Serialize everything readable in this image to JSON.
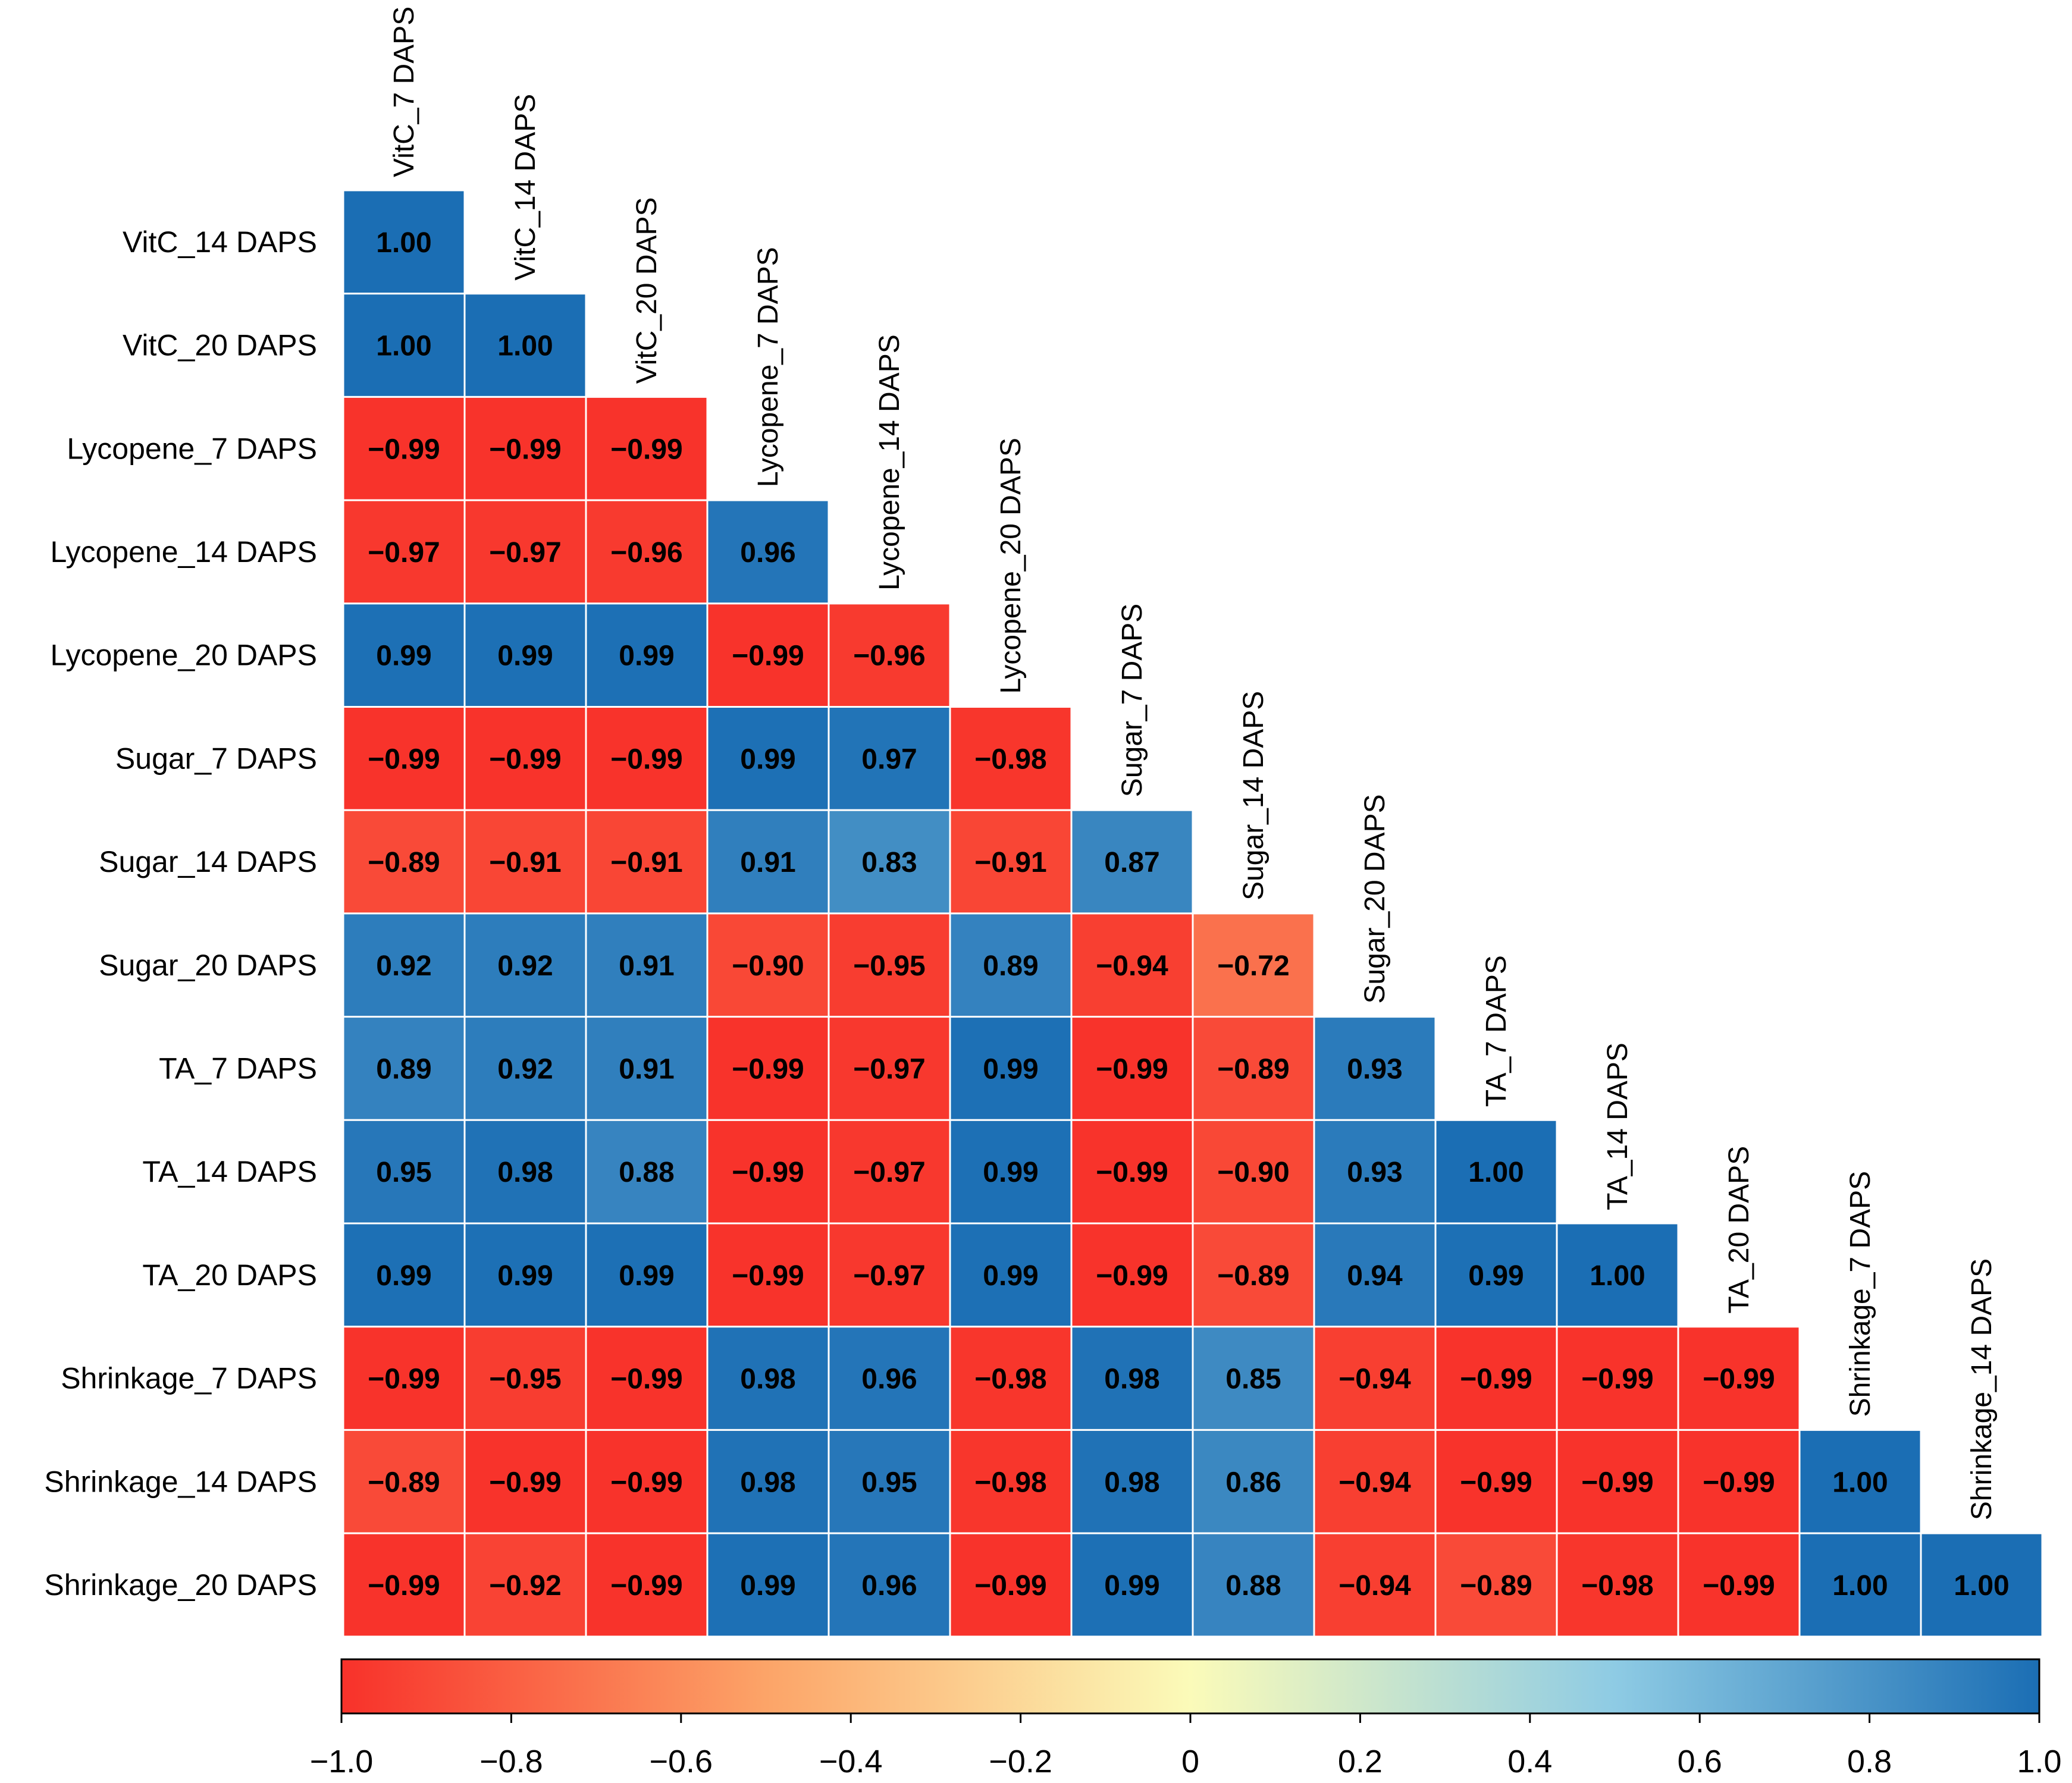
{
  "chart_data": {
    "type": "heatmap",
    "title": "",
    "layout": "lower-triangle correlation matrix",
    "row_labels": [
      "VitC_14 DAPS",
      "VitC_20 DAPS",
      "Lycopene_7 DAPS",
      "Lycopene_14 DAPS",
      "Lycopene_20 DAPS",
      "Sugar_7 DAPS",
      "Sugar_14 DAPS",
      "Sugar_20 DAPS",
      "TA_7 DAPS",
      "TA_14 DAPS",
      "TA_20 DAPS",
      "Shrinkage_7 DAPS",
      "Shrinkage_14 DAPS",
      "Shrinkage_20 DAPS"
    ],
    "column_labels": [
      "VitC_7 DAPS",
      "VitC_14 DAPS",
      "VitC_20 DAPS",
      "Lycopene_7 DAPS",
      "Lycopene_14 DAPS",
      "Lycopene_20 DAPS",
      "Sugar_7 DAPS",
      "Sugar_14 DAPS",
      "Sugar_20 DAPS",
      "TA_7 DAPS",
      "TA_14 DAPS",
      "TA_20 DAPS",
      "Shrinkage_7 DAPS",
      "Shrinkage_14 DAPS"
    ],
    "values": [
      [
        1.0
      ],
      [
        1.0,
        1.0
      ],
      [
        -0.99,
        -0.99,
        -0.99
      ],
      [
        -0.97,
        -0.97,
        -0.96,
        0.96
      ],
      [
        0.99,
        0.99,
        0.99,
        -0.99,
        -0.96
      ],
      [
        -0.99,
        -0.99,
        -0.99,
        0.99,
        0.97,
        -0.98
      ],
      [
        -0.89,
        -0.91,
        -0.91,
        0.91,
        0.83,
        -0.91,
        0.87
      ],
      [
        0.92,
        0.92,
        0.91,
        -0.9,
        -0.95,
        0.89,
        -0.94,
        -0.72
      ],
      [
        0.89,
        0.92,
        0.91,
        -0.99,
        -0.97,
        0.99,
        -0.99,
        -0.89,
        0.93
      ],
      [
        0.95,
        0.98,
        0.88,
        -0.99,
        -0.97,
        0.99,
        -0.99,
        -0.9,
        0.93,
        1.0
      ],
      [
        0.99,
        0.99,
        0.99,
        -0.99,
        -0.97,
        0.99,
        -0.99,
        -0.89,
        0.94,
        0.99,
        1.0
      ],
      [
        -0.99,
        -0.95,
        -0.99,
        0.98,
        0.96,
        -0.98,
        0.98,
        0.85,
        -0.94,
        -0.99,
        -0.99,
        -0.99
      ],
      [
        -0.89,
        -0.99,
        -0.99,
        0.98,
        0.95,
        -0.98,
        0.98,
        0.86,
        -0.94,
        -0.99,
        -0.99,
        -0.99,
        1.0
      ],
      [
        -0.99,
        -0.92,
        -0.99,
        0.99,
        0.96,
        -0.99,
        0.99,
        0.88,
        -0.94,
        -0.89,
        -0.98,
        -0.99,
        1.0,
        1.0
      ]
    ],
    "value_labels": [
      [
        "1.00"
      ],
      [
        "1.00",
        "1.00"
      ],
      [
        "−0.99",
        "−0.99",
        "−0.99"
      ],
      [
        "−0.97",
        "−0.97",
        "−0.96",
        "0.96"
      ],
      [
        "0.99",
        "0.99",
        "0.99",
        "−0.99",
        "−0.96"
      ],
      [
        "−0.99",
        "−0.99",
        "−0.99",
        "0.99",
        "0.97",
        "−0.98"
      ],
      [
        "−0.89",
        "−0.91",
        "−0.91",
        "0.91",
        "0.83",
        "−0.91",
        "0.87"
      ],
      [
        "0.92",
        "0.92",
        "0.91",
        "−0.90",
        "−0.95",
        "0.89",
        "−0.94",
        "−0.72"
      ],
      [
        "0.89",
        "0.92",
        "0.91",
        "−0.99",
        "−0.97",
        "0.99",
        "−0.99",
        "−0.89",
        "0.93"
      ],
      [
        "0.95",
        "0.98",
        "0.88",
        "−0.99",
        "−0.97",
        "0.99",
        "−0.99",
        "−0.90",
        "0.93",
        "1.00"
      ],
      [
        "0.99",
        "0.99",
        "0.99",
        "−0.99",
        "−0.97",
        "0.99",
        "−0.99",
        "−0.89",
        "0.94",
        "0.99",
        "1.00"
      ],
      [
        "−0.99",
        "−0.95",
        "−0.99",
        "0.98",
        "0.96",
        "−0.98",
        "0.98",
        "0.85",
        "−0.94",
        "−0.99",
        "−0.99",
        "−0.99"
      ],
      [
        "−0.89",
        "−0.99",
        "−0.99",
        "0.98",
        "0.95",
        "−0.98",
        "0.98",
        "0.86",
        "−0.94",
        "−0.99",
        "−0.99",
        "−0.99",
        "1.00"
      ],
      [
        "−0.99",
        "−0.92",
        "−0.99",
        "0.99",
        "0.96",
        "−0.99",
        "0.99",
        "0.88",
        "−0.94",
        "−0.89",
        "−0.98",
        "−0.99",
        "1.00",
        "1.00"
      ]
    ],
    "colorbar": {
      "range": [
        -1.0,
        1.0
      ],
      "ticks": [
        -1.0,
        -0.8,
        -0.6,
        -0.4,
        -0.2,
        0,
        0.2,
        0.4,
        0.6,
        0.8,
        1.0
      ],
      "tick_labels": [
        "−1.0",
        "−0.8",
        "−0.6",
        "−0.4",
        "−0.2",
        "0",
        "0.2",
        "0.4",
        "0.6",
        "0.8",
        "1.0"
      ],
      "placement": "bottom",
      "color_stops": [
        {
          "value": -1.0,
          "color": "#f8312a"
        },
        {
          "value": -0.5,
          "color": "#fca468"
        },
        {
          "value": 0.0,
          "color": "#fbfbb9"
        },
        {
          "value": 0.5,
          "color": "#8ecbe4"
        },
        {
          "value": 1.0,
          "color": "#1b6eb4"
        }
      ]
    },
    "grid_line_color": "#ffffff"
  }
}
